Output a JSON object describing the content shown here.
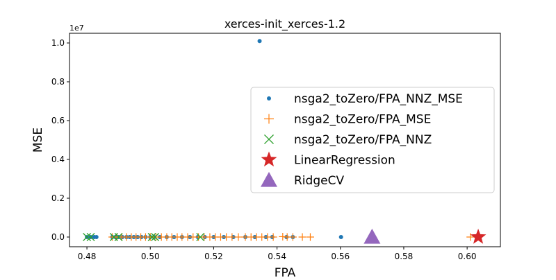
{
  "chart_data": {
    "type": "scatter",
    "title": "xerces-init_xerces-1.2",
    "xlabel": "FPA",
    "ylabel": "MSE",
    "y_scale_label": "1e7",
    "xlim": [
      0.4745,
      0.6105
    ],
    "ylim": [
      -0.05,
      1.05
    ],
    "x_ticks": [
      0.48,
      0.5,
      0.52,
      0.54,
      0.56,
      0.58,
      0.6
    ],
    "x_tick_labels": [
      "0.48",
      "0.50",
      "0.52",
      "0.54",
      "0.56",
      "0.58",
      "0.60"
    ],
    "y_ticks": [
      0.0,
      0.2,
      0.4,
      0.6,
      0.8,
      1.0
    ],
    "y_tick_labels": [
      "0.0",
      "0.2",
      "0.4",
      "0.6",
      "0.8",
      "1.0"
    ],
    "grid": false,
    "legend_position": "center-right",
    "series": [
      {
        "name": "nsga2_toZero/FPA_NNZ_MSE",
        "marker": "dot",
        "color": "#1f77b4",
        "points": [
          [
            0.48,
            0.0
          ],
          [
            0.4812,
            0.0
          ],
          [
            0.4823,
            0.0
          ],
          [
            0.483,
            0.0
          ],
          [
            0.488,
            0.0
          ],
          [
            0.489,
            0.0
          ],
          [
            0.49,
            0.0
          ],
          [
            0.4912,
            0.0
          ],
          [
            0.4925,
            0.0
          ],
          [
            0.4935,
            0.0
          ],
          [
            0.4948,
            0.0
          ],
          [
            0.496,
            0.0
          ],
          [
            0.4972,
            0.0
          ],
          [
            0.4985,
            0.0
          ],
          [
            0.5,
            0.0
          ],
          [
            0.5012,
            0.0
          ],
          [
            0.503,
            0.0
          ],
          [
            0.5052,
            0.0
          ],
          [
            0.5075,
            0.0
          ],
          [
            0.51,
            0.0
          ],
          [
            0.5125,
            0.0
          ],
          [
            0.515,
            0.0
          ],
          [
            0.5172,
            0.0
          ],
          [
            0.52,
            0.0
          ],
          [
            0.5232,
            0.0
          ],
          [
            0.5262,
            0.0
          ],
          [
            0.53,
            0.0
          ],
          [
            0.533,
            0.0
          ],
          [
            0.5365,
            0.0
          ],
          [
            0.5385,
            0.0
          ],
          [
            0.543,
            0.0
          ],
          [
            0.545,
            0.0
          ],
          [
            0.5345,
            1.01
          ],
          [
            0.5602,
            0.0
          ]
        ]
      },
      {
        "name": "nsga2_toZero/FPA_MSE",
        "marker": "plus",
        "color": "#ff7f0e",
        "points": [
          [
            0.488,
            0.0
          ],
          [
            0.4895,
            0.0
          ],
          [
            0.491,
            0.0
          ],
          [
            0.4925,
            0.0
          ],
          [
            0.494,
            0.0
          ],
          [
            0.4955,
            0.0
          ],
          [
            0.497,
            0.0
          ],
          [
            0.4985,
            0.0
          ],
          [
            0.5,
            0.0
          ],
          [
            0.5018,
            0.0
          ],
          [
            0.5035,
            0.0
          ],
          [
            0.5052,
            0.0
          ],
          [
            0.5068,
            0.0
          ],
          [
            0.5085,
            0.0
          ],
          [
            0.51,
            0.0
          ],
          [
            0.5118,
            0.0
          ],
          [
            0.5135,
            0.0
          ],
          [
            0.5152,
            0.0
          ],
          [
            0.517,
            0.0
          ],
          [
            0.5188,
            0.0
          ],
          [
            0.5205,
            0.0
          ],
          [
            0.5222,
            0.0
          ],
          [
            0.524,
            0.0
          ],
          [
            0.5258,
            0.0
          ],
          [
            0.5278,
            0.0
          ],
          [
            0.53,
            0.0
          ],
          [
            0.5318,
            0.0
          ],
          [
            0.5335,
            0.0
          ],
          [
            0.5352,
            0.0
          ],
          [
            0.537,
            0.0
          ],
          [
            0.5388,
            0.0
          ],
          [
            0.5418,
            0.002
          ],
          [
            0.5432,
            0.0
          ],
          [
            0.545,
            0.0
          ],
          [
            0.548,
            0.0
          ],
          [
            0.5505,
            0.0
          ],
          [
            0.601,
            0.0
          ]
        ]
      },
      {
        "name": "nsga2_toZero/FPA_NNZ",
        "marker": "x",
        "color": "#2ca02c",
        "points": [
          [
            0.48,
            0.0
          ],
          [
            0.4812,
            0.0
          ],
          [
            0.4885,
            0.0
          ],
          [
            0.49,
            0.0
          ],
          [
            0.5005,
            0.0
          ],
          [
            0.5015,
            0.0
          ],
          [
            0.5158,
            0.0
          ]
        ]
      },
      {
        "name": "LinearRegression",
        "marker": "star",
        "color": "#d62728",
        "points": [
          [
            0.6035,
            0.0
          ]
        ]
      },
      {
        "name": "RidgeCV",
        "marker": "triangle",
        "color": "#9467bd",
        "points": [
          [
            0.57,
            0.0
          ]
        ]
      }
    ]
  }
}
